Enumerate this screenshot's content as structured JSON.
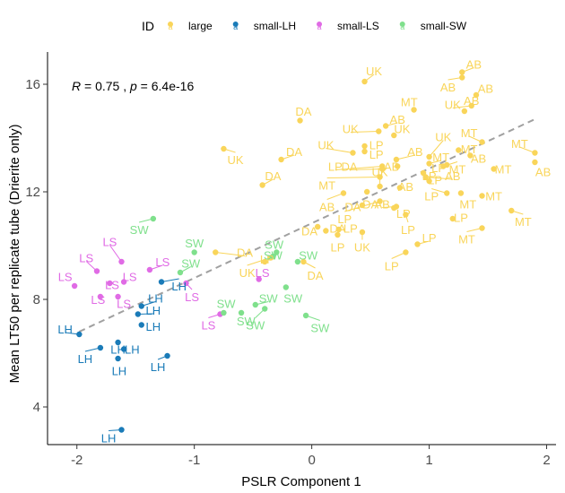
{
  "chart_data": {
    "type": "scatter",
    "xlabel": "PSLR Component 1",
    "ylabel": "Mean LT50 per replicate tube (Drierite only)",
    "xlim": [
      -2.25,
      2.08
    ],
    "ylim": [
      2.6,
      17.2
    ],
    "xticks": [
      "-2",
      "-1",
      "0",
      "1",
      "2"
    ],
    "xtick_values": [
      -2,
      -1,
      0,
      1,
      2
    ],
    "yticks": [
      "4",
      "8",
      "12",
      "16"
    ],
    "ytick_values": [
      4,
      8,
      12,
      16
    ],
    "annotation": {
      "r_label": "R",
      "r_value": " = 0.75 , ",
      "p_label": "p",
      "p_value": " = 6.4e-16"
    },
    "legend": {
      "title": "ID",
      "position": "top",
      "entries": [
        {
          "name": "large",
          "color": "#F9D55A"
        },
        {
          "name": "small-LH",
          "color": "#1A7BB8"
        },
        {
          "name": "small-LS",
          "color": "#E06BE5"
        },
        {
          "name": "small-SW",
          "color": "#7FE08C"
        }
      ]
    },
    "trend_line": {
      "x": [
        -1.98,
        1.9
      ],
      "y": [
        6.8,
        14.7
      ],
      "color": "#a0a0a0",
      "style": "dashed"
    },
    "series": [
      {
        "name": "large",
        "color": "#F9D55A",
        "points": [
          {
            "x": 0.45,
            "y": 16.1,
            "label": "UK",
            "lx": 0.53,
            "ly": 16.5
          },
          {
            "x": 1.28,
            "y": 16.45,
            "label": "AB",
            "lx": 1.38,
            "ly": 16.75
          },
          {
            "x": 1.28,
            "y": 16.25,
            "label": "AB",
            "lx": 1.16,
            "ly": 15.9
          },
          {
            "x": 1.4,
            "y": 15.6,
            "label": "AB",
            "lx": 1.48,
            "ly": 15.85
          },
          {
            "x": 1.36,
            "y": 15.2,
            "label": "UK",
            "lx": 1.2,
            "ly": 15.25
          },
          {
            "x": 0.87,
            "y": 15.05,
            "label": "MT",
            "lx": 0.83,
            "ly": 15.35
          },
          {
            "x": 1.3,
            "y": 15.0,
            "label": "AB",
            "lx": 1.36,
            "ly": 15.4
          },
          {
            "x": 0.63,
            "y": 14.45,
            "label": "AB",
            "lx": 0.73,
            "ly": 14.7
          },
          {
            "x": 0.7,
            "y": 14.1,
            "label": "UK",
            "lx": 0.77,
            "ly": 14.35
          },
          {
            "x": 0.57,
            "y": 14.25,
            "label": "UK",
            "lx": 0.33,
            "ly": 14.35
          },
          {
            "x": -0.1,
            "y": 14.65,
            "label": "DA",
            "lx": -0.07,
            "ly": 15.0
          },
          {
            "x": 1.45,
            "y": 13.85,
            "label": "MT",
            "lx": 1.34,
            "ly": 14.2
          },
          {
            "x": 0.45,
            "y": 13.7,
            "label": "LP",
            "lx": 0.55,
            "ly": 13.75
          },
          {
            "x": 0.45,
            "y": 13.5,
            "label": "LP",
            "lx": 0.55,
            "ly": 13.4
          },
          {
            "x": 1.0,
            "y": 13.3,
            "label": "UK",
            "lx": 1.12,
            "ly": 14.05
          },
          {
            "x": 0.35,
            "y": 13.45,
            "label": "UK",
            "lx": 0.12,
            "ly": 13.75
          },
          {
            "x": 1.25,
            "y": 13.55,
            "label": "MT",
            "lx": 1.34,
            "ly": 13.6
          },
          {
            "x": 1.35,
            "y": 13.35,
            "label": "AB",
            "lx": 1.42,
            "ly": 13.25
          },
          {
            "x": 0.72,
            "y": 13.2,
            "label": "AB",
            "lx": 0.88,
            "ly": 13.5
          },
          {
            "x": 1.0,
            "y": 13.05,
            "label": "MT",
            "lx": 1.1,
            "ly": 13.3
          },
          {
            "x": 1.15,
            "y": 13.0,
            "label": "LP",
            "lx": 1.08,
            "ly": 12.9
          },
          {
            "x": -0.26,
            "y": 13.2,
            "label": "DA",
            "lx": -0.15,
            "ly": 13.5
          },
          {
            "x": -0.75,
            "y": 13.6,
            "label": "UK",
            "lx": -0.65,
            "ly": 13.2
          },
          {
            "x": 1.9,
            "y": 13.45,
            "label": "MT",
            "lx": 1.77,
            "ly": 13.8
          },
          {
            "x": 1.9,
            "y": 13.1,
            "label": "AB",
            "lx": 1.97,
            "ly": 12.75
          },
          {
            "x": 0.6,
            "y": 12.95,
            "label": "LP",
            "lx": 0.2,
            "ly": 12.95
          },
          {
            "x": 0.6,
            "y": 12.85,
            "label": "DA",
            "lx": 0.32,
            "ly": 12.95
          },
          {
            "x": 0.73,
            "y": 12.95,
            "label": "AB",
            "lx": 0.68,
            "ly": 12.95
          },
          {
            "x": 1.12,
            "y": 12.95,
            "label": "MT",
            "lx": 1.24,
            "ly": 12.85
          },
          {
            "x": 1.55,
            "y": 12.85,
            "label": "MT",
            "lx": 1.63,
            "ly": 12.85
          },
          {
            "x": 0.58,
            "y": 12.55,
            "label": "MT",
            "lx": 0.13,
            "ly": 12.25
          },
          {
            "x": 0.95,
            "y": 12.7,
            "label": "LP",
            "lx": 1.0,
            "ly": 12.6
          },
          {
            "x": 0.97,
            "y": 12.55,
            "label": "AB",
            "lx": 1.2,
            "ly": 12.6
          },
          {
            "x": 1.0,
            "y": 12.4,
            "label": "LP",
            "lx": 1.05,
            "ly": 12.45
          },
          {
            "x": 0.58,
            "y": 12.2,
            "label": "UK",
            "lx": 0.58,
            "ly": 12.75
          },
          {
            "x": -0.42,
            "y": 12.25,
            "label": "DA",
            "lx": -0.33,
            "ly": 12.6
          },
          {
            "x": 0.75,
            "y": 12.15,
            "label": "AB",
            "lx": 0.8,
            "ly": 12.2
          },
          {
            "x": 1.15,
            "y": 11.95,
            "label": "LP",
            "lx": 1.02,
            "ly": 11.85
          },
          {
            "x": 1.45,
            "y": 11.85,
            "label": "MT",
            "lx": 1.55,
            "ly": 11.85
          },
          {
            "x": 1.27,
            "y": 11.95,
            "label": "MT",
            "lx": 1.33,
            "ly": 11.55
          },
          {
            "x": 0.47,
            "y": 12.0,
            "label": "DA",
            "lx": 0.5,
            "ly": 11.55
          },
          {
            "x": 0.27,
            "y": 11.95,
            "label": "AB",
            "lx": 0.13,
            "ly": 11.45
          },
          {
            "x": 0.58,
            "y": 11.65,
            "label": "LP",
            "lx": 0.28,
            "ly": 11.0
          },
          {
            "x": 0.43,
            "y": 11.5,
            "label": "DA",
            "lx": 0.35,
            "ly": 11.45
          },
          {
            "x": 0.72,
            "y": 11.45,
            "label": "AB",
            "lx": 0.6,
            "ly": 11.55
          },
          {
            "x": 0.7,
            "y": 11.4,
            "label": "LP",
            "lx": 0.78,
            "ly": 11.2
          },
          {
            "x": 0.8,
            "y": 11.15,
            "label": "LP",
            "lx": 0.82,
            "ly": 10.6
          },
          {
            "x": 1.45,
            "y": 10.65,
            "label": "MT",
            "lx": 1.32,
            "ly": 10.25
          },
          {
            "x": 1.7,
            "y": 11.3,
            "label": "MT",
            "lx": 1.8,
            "ly": 10.9
          },
          {
            "x": 1.2,
            "y": 11.0,
            "label": "LP",
            "lx": 1.27,
            "ly": 11.05
          },
          {
            "x": 0.05,
            "y": 10.7,
            "label": "DA",
            "lx": -0.02,
            "ly": 10.55
          },
          {
            "x": 0.12,
            "y": 10.55,
            "label": "DA",
            "lx": 0.22,
            "ly": 10.65
          },
          {
            "x": 0.23,
            "y": 10.6,
            "label": "LP",
            "lx": 0.33,
            "ly": 10.65
          },
          {
            "x": 0.22,
            "y": 10.4,
            "label": "LP",
            "lx": 0.22,
            "ly": 9.95
          },
          {
            "x": 0.43,
            "y": 10.5,
            "label": "UK",
            "lx": 0.43,
            "ly": 9.95
          },
          {
            "x": 0.9,
            "y": 10.05,
            "label": "LP",
            "lx": 1.0,
            "ly": 10.3
          },
          {
            "x": 0.8,
            "y": 9.75,
            "label": "LP",
            "lx": 0.68,
            "ly": 9.25
          },
          {
            "x": -0.82,
            "y": 9.75,
            "label": "DA",
            "lx": -0.57,
            "ly": 9.75
          },
          {
            "x": -0.4,
            "y": 9.4,
            "label": "LP",
            "lx": -0.38,
            "ly": 9.5
          },
          {
            "x": -0.35,
            "y": 9.55,
            "label": "UK",
            "lx": -0.55,
            "ly": 9.0
          },
          {
            "x": -0.07,
            "y": 9.4,
            "label": "DA",
            "lx": 0.03,
            "ly": 8.9
          }
        ]
      },
      {
        "name": "small-LH",
        "color": "#1A7BB8",
        "points": [
          {
            "x": -1.28,
            "y": 8.65,
            "label": "LH",
            "lx": -1.13,
            "ly": 8.5
          },
          {
            "x": -1.45,
            "y": 7.75,
            "label": "LH",
            "lx": -1.33,
            "ly": 8.05
          },
          {
            "x": -1.48,
            "y": 7.45,
            "label": "LH",
            "lx": -1.35,
            "ly": 7.6
          },
          {
            "x": -1.45,
            "y": 7.05,
            "label": "LH",
            "lx": -1.35,
            "ly": 7.0
          },
          {
            "x": -1.98,
            "y": 6.7,
            "label": "LH",
            "lx": -2.1,
            "ly": 6.9
          },
          {
            "x": -1.65,
            "y": 6.4,
            "label": "LH",
            "lx": -1.65,
            "ly": 6.15
          },
          {
            "x": -1.8,
            "y": 6.2,
            "label": "LH",
            "lx": -1.93,
            "ly": 5.8
          },
          {
            "x": -1.6,
            "y": 6.15,
            "label": "LH",
            "lx": -1.53,
            "ly": 6.15
          },
          {
            "x": -1.65,
            "y": 5.8,
            "label": "LH",
            "lx": -1.64,
            "ly": 5.35
          },
          {
            "x": -1.23,
            "y": 5.9,
            "label": "LH",
            "lx": -1.31,
            "ly": 5.5
          },
          {
            "x": -1.62,
            "y": 3.15,
            "label": "LH",
            "lx": -1.73,
            "ly": 2.85
          }
        ]
      },
      {
        "name": "small-LS",
        "color": "#E06BE5",
        "points": [
          {
            "x": -1.62,
            "y": 9.4,
            "label": "LS",
            "lx": -1.72,
            "ly": 10.15
          },
          {
            "x": -1.83,
            "y": 9.05,
            "label": "LS",
            "lx": -1.92,
            "ly": 9.55
          },
          {
            "x": -1.38,
            "y": 9.1,
            "label": "LS",
            "lx": -1.27,
            "ly": 9.4
          },
          {
            "x": -1.6,
            "y": 8.65,
            "label": "LS",
            "lx": -1.55,
            "ly": 8.85
          },
          {
            "x": -1.72,
            "y": 8.6,
            "label": "LS",
            "lx": -1.7,
            "ly": 8.55
          },
          {
            "x": -2.02,
            "y": 8.5,
            "label": "LS",
            "lx": -2.1,
            "ly": 8.85
          },
          {
            "x": -1.8,
            "y": 8.1,
            "label": "LS",
            "lx": -1.82,
            "ly": 8.0
          },
          {
            "x": -1.65,
            "y": 8.1,
            "label": "LS",
            "lx": -1.6,
            "ly": 7.85
          },
          {
            "x": -1.07,
            "y": 8.6,
            "label": "LS",
            "lx": -1.02,
            "ly": 8.1
          },
          {
            "x": -0.45,
            "y": 8.75,
            "label": "LS",
            "lx": -0.42,
            "ly": 9.0
          },
          {
            "x": -0.78,
            "y": 7.45,
            "label": "LS",
            "lx": -0.88,
            "ly": 7.05
          }
        ]
      },
      {
        "name": "small-SW",
        "color": "#7FE08C",
        "points": [
          {
            "x": -1.35,
            "y": 11.0,
            "label": "SW",
            "lx": -1.47,
            "ly": 10.6
          },
          {
            "x": -1.0,
            "y": 9.75,
            "label": "SW",
            "lx": -1.0,
            "ly": 10.1
          },
          {
            "x": -0.33,
            "y": 9.6,
            "label": "SW",
            "lx": -0.32,
            "ly": 10.05
          },
          {
            "x": -1.12,
            "y": 9.0,
            "label": "SW",
            "lx": -1.03,
            "ly": 9.35
          },
          {
            "x": -0.3,
            "y": 9.75,
            "label": "SW",
            "lx": -0.33,
            "ly": 9.65
          },
          {
            "x": -0.12,
            "y": 9.4,
            "label": "SW",
            "lx": -0.03,
            "ly": 9.65
          },
          {
            "x": -0.22,
            "y": 8.45,
            "label": "SW",
            "lx": -0.16,
            "ly": 8.05
          },
          {
            "x": -0.75,
            "y": 7.5,
            "label": "SW",
            "lx": -0.73,
            "ly": 7.85
          },
          {
            "x": -0.6,
            "y": 7.5,
            "label": "SW",
            "lx": -0.56,
            "ly": 7.2
          },
          {
            "x": -0.48,
            "y": 7.8,
            "label": "SW",
            "lx": -0.37,
            "ly": 8.05
          },
          {
            "x": -0.05,
            "y": 7.4,
            "label": "SW",
            "lx": 0.07,
            "ly": 6.95
          },
          {
            "x": -0.4,
            "y": 7.65,
            "label": "SW",
            "lx": -0.48,
            "ly": 7.05
          }
        ]
      }
    ]
  }
}
